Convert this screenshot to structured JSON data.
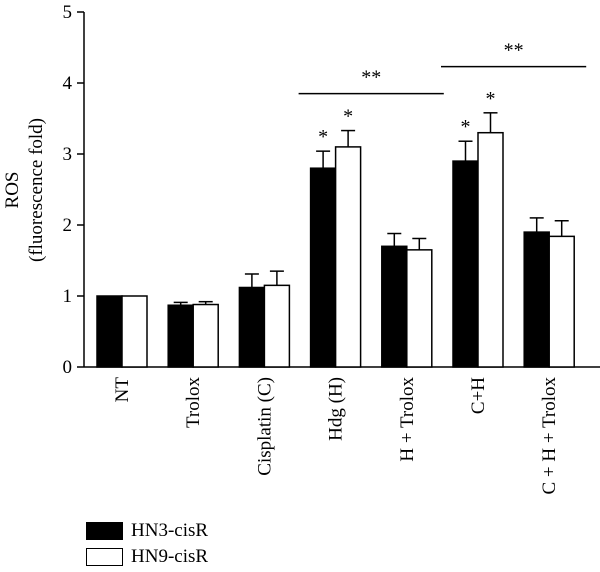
{
  "chart_data": {
    "type": "bar",
    "ylabel_line1": "ROS",
    "ylabel_line2": "(fluorescence fold)",
    "ylim": [
      0,
      5
    ],
    "yticks": [
      "0",
      "1",
      "2",
      "3",
      "4",
      "5"
    ],
    "categories": [
      "NT",
      "Trolox",
      "Cisplatin (C)",
      "Hdg (H)",
      "H + Trolox",
      "C+H",
      "C + H + Trolox"
    ],
    "series": [
      {
        "name": "HN3-cisR",
        "color": "#000000",
        "values": [
          1.0,
          0.87,
          1.12,
          2.8,
          1.7,
          2.9,
          1.9
        ],
        "errors": [
          0.0,
          0.04,
          0.19,
          0.24,
          0.18,
          0.28,
          0.2
        ],
        "annotations": [
          "",
          "",
          "",
          "*",
          "",
          "*",
          ""
        ]
      },
      {
        "name": "HN9-cisR",
        "color": "#ffffff",
        "values": [
          1.0,
          0.88,
          1.15,
          3.1,
          1.65,
          3.3,
          1.84
        ],
        "errors": [
          0.0,
          0.04,
          0.2,
          0.23,
          0.16,
          0.28,
          0.22
        ],
        "annotations": [
          "",
          "",
          "",
          "*",
          "",
          "*",
          ""
        ]
      }
    ],
    "significance_brackets": [
      {
        "from_category": 3,
        "to_category": 4,
        "y": 3.85,
        "label": "**"
      },
      {
        "from_category": 5,
        "to_category": 6,
        "y": 4.23,
        "label": "**"
      }
    ],
    "legend_position": "bottom-left"
  }
}
